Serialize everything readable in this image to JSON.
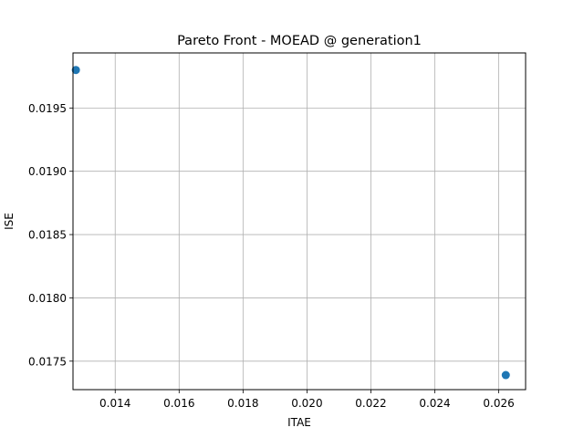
{
  "chart_data": {
    "type": "scatter",
    "title": "Pareto Front - MOEAD @ generation1",
    "xlabel": "ITAE",
    "ylabel": "ISE",
    "xlim": [
      0.01268,
      0.02684
    ],
    "ylim": [
      0.017275,
      0.019935
    ],
    "xticks": [
      0.014,
      0.016,
      0.018,
      0.02,
      0.022,
      0.024,
      0.026
    ],
    "xtick_labels": [
      "0.014",
      "0.016",
      "0.018",
      "0.020",
      "0.022",
      "0.024",
      "0.026"
    ],
    "yticks": [
      0.0175,
      0.018,
      0.0185,
      0.019,
      0.0195
    ],
    "ytick_labels": [
      "0.0175",
      "0.0180",
      "0.0185",
      "0.0190",
      "0.0195"
    ],
    "grid": true,
    "series": [
      {
        "color": "#1f77b4",
        "points": [
          {
            "x": 0.01277,
            "y": 0.0198
          },
          {
            "x": 0.02622,
            "y": 0.01739
          }
        ]
      }
    ]
  }
}
